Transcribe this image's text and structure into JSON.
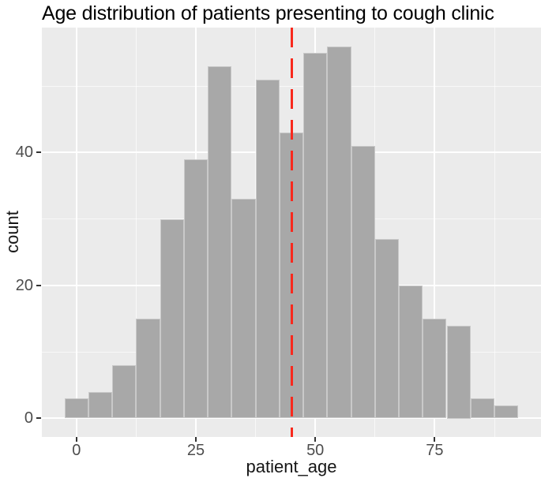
{
  "chart_data": {
    "type": "bar",
    "subtype": "histogram",
    "title": "Age distribution of patients presenting to cough clinic",
    "xlabel": "patient_age",
    "ylabel": "count",
    "bin_width": 5,
    "bin_centers": [
      0,
      5,
      10,
      15,
      20,
      25,
      30,
      35,
      40,
      45,
      50,
      55,
      60,
      65,
      70,
      75,
      80,
      85,
      90
    ],
    "counts": [
      3,
      4,
      8,
      15,
      30,
      39,
      53,
      33,
      51,
      43,
      55,
      56,
      41,
      27,
      20,
      15,
      14,
      3,
      2
    ],
    "x_ticks": [
      0,
      25,
      50,
      75
    ],
    "x_minor_ticks": [
      12.5,
      37.5,
      62.5,
      87.5
    ],
    "y_ticks": [
      0,
      20,
      40
    ],
    "y_minor_ticks": [
      10,
      30,
      50
    ],
    "xlim": [
      -7.25,
      97.25
    ],
    "ylim": [
      -2.8,
      58.8
    ],
    "grid": "white major and minor gridlines on gray panel",
    "legend_position": "none",
    "vline": {
      "x": 45,
      "style": "dashed",
      "color": "#f8291d"
    },
    "colors": {
      "bar_fill": "#a8a8a8",
      "bar_border": "#c9c9c9",
      "panel_background": "#ebebeb",
      "figure_background": "#ffffff",
      "gridline": "#ffffff",
      "tick_label_text": "#4d4d4d",
      "axis_title_text": "#161616",
      "title_text": "#000000",
      "reference_line": "#f8291d"
    }
  }
}
